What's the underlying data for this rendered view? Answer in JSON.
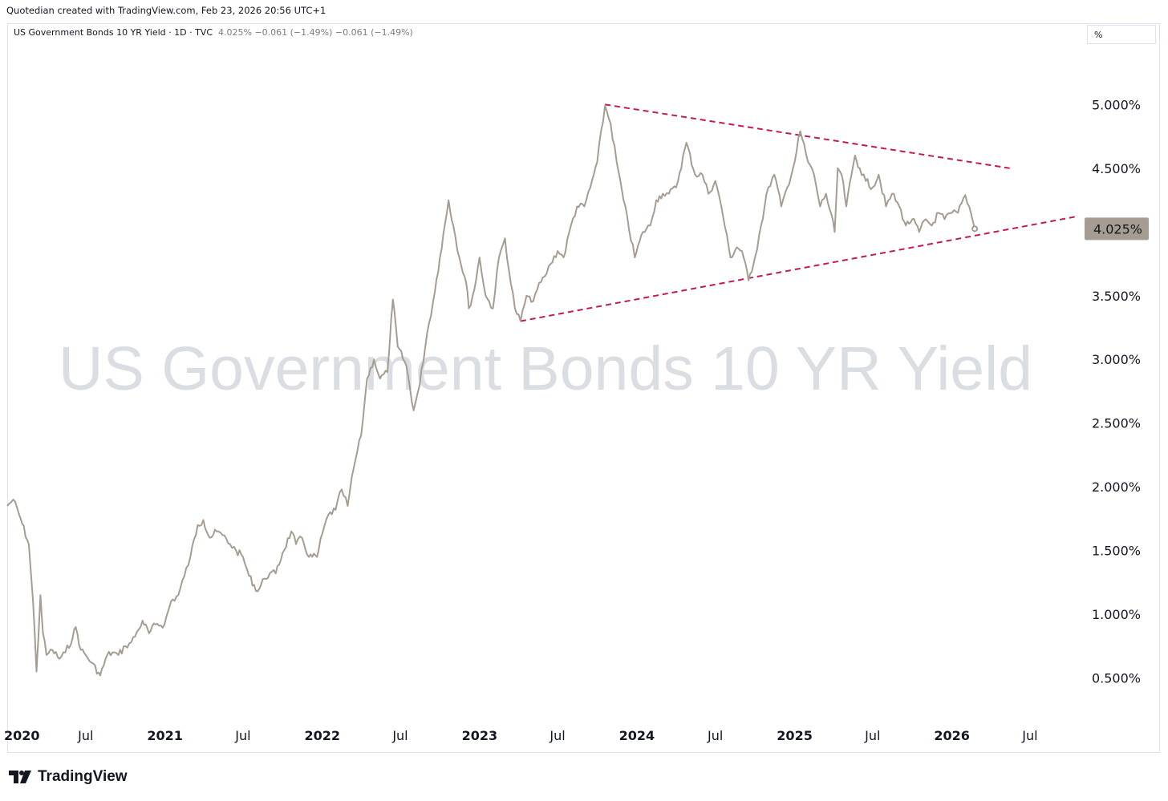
{
  "header": {
    "credit": "Quotedian created with TradingView.com, Feb 23, 2026 20:56 UTC+1"
  },
  "legend": {
    "symbol": "US Government Bonds 10 YR Yield · 1D · TVC",
    "values": "4.025%  −0.061 (−1.49%)  −0.061 (−1.49%)"
  },
  "unit_selector": {
    "value": "%"
  },
  "watermark": "US Government Bonds 10 YR Yield",
  "footer": {
    "brand": "TradingView"
  },
  "colors": {
    "series": "#a59d91",
    "trendline": "#c2185b",
    "price_label_bg": "#a59d91",
    "watermark": "#dadde2"
  },
  "chart_data": {
    "type": "line",
    "title": "",
    "xlabel": "",
    "ylabel": "",
    "ylim": [
      0.0,
      5.6
    ],
    "yticks": [
      0.5,
      1.0,
      1.5,
      2.0,
      2.5,
      3.0,
      3.5,
      4.0,
      4.5,
      5.0
    ],
    "ytick_labels": [
      "0.500%",
      "1.000%",
      "1.500%",
      "2.000%",
      "2.500%",
      "3.000%",
      "3.500%",
      "4.000%",
      "4.500%",
      "5.000%"
    ],
    "xlim": [
      "2020-01-01",
      "2026-11-01"
    ],
    "xticks": [
      {
        "date": "2020-01-01",
        "label": "2020"
      },
      {
        "date": "2020-07-01",
        "label": "Jul"
      },
      {
        "date": "2021-01-01",
        "label": "2021"
      },
      {
        "date": "2021-07-01",
        "label": "Jul"
      },
      {
        "date": "2022-01-01",
        "label": "2022"
      },
      {
        "date": "2022-07-01",
        "label": "Jul"
      },
      {
        "date": "2023-01-01",
        "label": "2023"
      },
      {
        "date": "2023-07-01",
        "label": "Jul"
      },
      {
        "date": "2024-01-01",
        "label": "2024"
      },
      {
        "date": "2024-07-01",
        "label": "Jul"
      },
      {
        "date": "2025-01-01",
        "label": "2025"
      },
      {
        "date": "2025-07-01",
        "label": "Jul"
      },
      {
        "date": "2026-01-01",
        "label": "2026"
      },
      {
        "date": "2026-07-01",
        "label": "Jul"
      }
    ],
    "last_value": 4.025,
    "last_value_label": "4.025%",
    "series": [
      {
        "x": [
          "2020-01-01",
          "2020-01-15",
          "2020-02-01",
          "2020-02-20",
          "2020-03-01",
          "2020-03-09",
          "2020-03-18",
          "2020-03-24",
          "2020-04-01",
          "2020-04-15",
          "2020-05-01",
          "2020-05-15",
          "2020-06-01",
          "2020-06-08",
          "2020-06-20",
          "2020-07-01",
          "2020-07-15",
          "2020-08-04",
          "2020-08-20",
          "2020-09-01",
          "2020-09-15",
          "2020-10-01",
          "2020-10-15",
          "2020-11-01",
          "2020-11-10",
          "2020-11-25",
          "2020-12-10",
          "2020-12-31",
          "2021-01-15",
          "2021-02-01",
          "2021-02-15",
          "2021-03-01",
          "2021-03-18",
          "2021-03-31",
          "2021-04-15",
          "2021-05-01",
          "2021-05-15",
          "2021-06-01",
          "2021-06-15",
          "2021-07-01",
          "2021-07-15",
          "2021-08-04",
          "2021-08-20",
          "2021-09-01",
          "2021-09-15",
          "2021-10-01",
          "2021-10-21",
          "2021-11-01",
          "2021-11-15",
          "2021-12-01",
          "2021-12-20",
          "2022-01-01",
          "2022-01-15",
          "2022-02-01",
          "2022-02-15",
          "2022-03-01",
          "2022-03-15",
          "2022-04-01",
          "2022-04-15",
          "2022-05-01",
          "2022-05-15",
          "2022-06-01",
          "2022-06-14",
          "2022-06-25",
          "2022-07-15",
          "2022-08-01",
          "2022-08-15",
          "2022-09-01",
          "2022-09-15",
          "2022-10-01",
          "2022-10-21",
          "2022-11-01",
          "2022-11-15",
          "2022-12-01",
          "2022-12-07",
          "2022-12-20",
          "2023-01-01",
          "2023-01-15",
          "2023-02-01",
          "2023-02-15",
          "2023-03-01",
          "2023-03-10",
          "2023-03-24",
          "2023-04-06",
          "2023-04-20",
          "2023-05-01",
          "2023-05-15",
          "2023-06-01",
          "2023-06-15",
          "2023-07-01",
          "2023-07-15",
          "2023-08-01",
          "2023-08-15",
          "2023-09-01",
          "2023-09-15",
          "2023-10-01",
          "2023-10-19",
          "2023-11-01",
          "2023-11-15",
          "2023-12-01",
          "2023-12-27",
          "2024-01-15",
          "2024-02-01",
          "2024-02-15",
          "2024-03-01",
          "2024-03-15",
          "2024-04-01",
          "2024-04-25",
          "2024-05-15",
          "2024-06-01",
          "2024-06-15",
          "2024-07-01",
          "2024-07-15",
          "2024-08-05",
          "2024-08-20",
          "2024-09-01",
          "2024-09-16",
          "2024-10-01",
          "2024-10-15",
          "2024-11-01",
          "2024-11-15",
          "2024-12-01",
          "2024-12-15",
          "2025-01-01",
          "2025-01-14",
          "2025-02-01",
          "2025-02-15",
          "2025-03-01",
          "2025-03-15",
          "2025-04-04",
          "2025-04-11",
          "2025-04-20",
          "2025-05-01",
          "2025-05-21",
          "2025-06-01",
          "2025-06-15",
          "2025-07-01",
          "2025-07-15",
          "2025-08-01",
          "2025-08-15",
          "2025-09-01",
          "2025-09-16",
          "2025-10-01",
          "2025-10-17",
          "2025-11-01",
          "2025-11-15",
          "2025-12-01",
          "2025-12-15",
          "2026-01-01",
          "2026-01-15",
          "2026-02-01",
          "2026-02-10",
          "2026-02-23"
        ],
        "y": [
          1.85,
          1.9,
          1.75,
          1.55,
          1.1,
          0.55,
          1.15,
          0.85,
          0.68,
          0.72,
          0.65,
          0.7,
          0.82,
          0.9,
          0.72,
          0.68,
          0.62,
          0.52,
          0.68,
          0.7,
          0.68,
          0.75,
          0.78,
          0.88,
          0.95,
          0.85,
          0.92,
          0.92,
          1.1,
          1.15,
          1.3,
          1.45,
          1.7,
          1.74,
          1.6,
          1.65,
          1.62,
          1.55,
          1.5,
          1.45,
          1.3,
          1.18,
          1.28,
          1.32,
          1.32,
          1.48,
          1.65,
          1.55,
          1.6,
          1.45,
          1.45,
          1.63,
          1.78,
          1.82,
          1.98,
          1.85,
          2.15,
          2.4,
          2.85,
          3.0,
          2.85,
          2.9,
          3.47,
          3.1,
          2.95,
          2.6,
          2.8,
          3.2,
          3.45,
          3.8,
          4.25,
          4.05,
          3.8,
          3.6,
          3.4,
          3.55,
          3.8,
          3.5,
          3.4,
          3.8,
          3.95,
          3.7,
          3.4,
          3.3,
          3.5,
          3.45,
          3.55,
          3.65,
          3.75,
          3.85,
          3.8,
          4.05,
          4.2,
          4.2,
          4.35,
          4.55,
          4.99,
          4.85,
          4.55,
          4.25,
          3.8,
          4.0,
          4.05,
          4.25,
          4.3,
          4.3,
          4.35,
          4.7,
          4.45,
          4.45,
          4.3,
          4.4,
          4.2,
          3.8,
          3.88,
          3.85,
          3.62,
          3.8,
          4.05,
          4.35,
          4.45,
          4.2,
          4.35,
          4.55,
          4.79,
          4.55,
          4.45,
          4.2,
          4.3,
          4.0,
          4.5,
          4.45,
          4.2,
          4.6,
          4.5,
          4.4,
          4.35,
          4.45,
          4.2,
          4.3,
          4.2,
          4.05,
          4.1,
          4.0,
          4.1,
          4.05,
          4.15,
          4.1,
          4.15,
          4.15,
          4.29,
          4.2,
          4.025
        ]
      }
    ],
    "trendlines": [
      {
        "x": [
          "2023-10-19",
          "2026-05-15"
        ],
        "y": [
          5.0,
          4.5
        ]
      },
      {
        "x": [
          "2023-04-06",
          "2026-10-15"
        ],
        "y": [
          3.3,
          4.12
        ]
      }
    ]
  }
}
